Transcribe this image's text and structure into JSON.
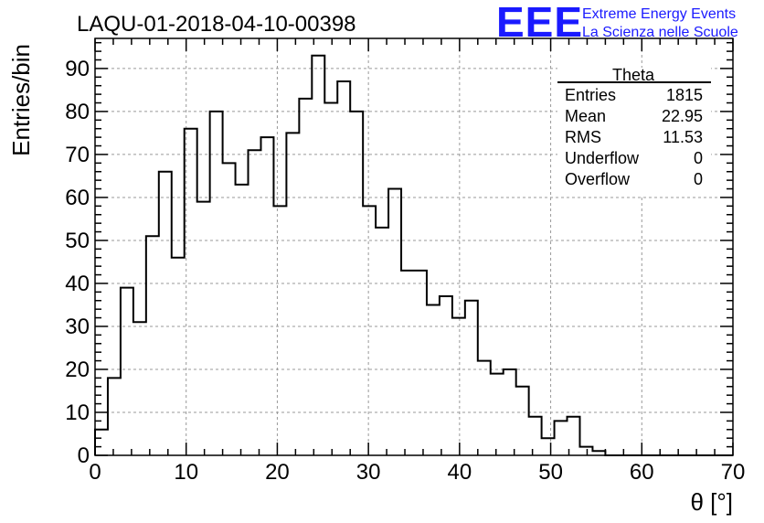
{
  "chart_data": {
    "type": "bar",
    "title": "LAQU-01-2018-04-10-00398",
    "xlabel": "θ [°]",
    "ylabel": "Entries/bin",
    "xlim": [
      0,
      70
    ],
    "ylim": [
      0,
      97
    ],
    "bin_width": 1.4,
    "x_ticks": [
      0,
      10,
      20,
      30,
      40,
      50,
      60,
      70
    ],
    "y_ticks": [
      0,
      10,
      20,
      30,
      40,
      50,
      60,
      70,
      80,
      90
    ],
    "grid": true,
    "values": [
      6,
      18,
      39,
      31,
      51,
      66,
      46,
      76,
      59,
      80,
      68,
      63,
      71,
      74,
      58,
      75,
      83,
      93,
      82,
      87,
      80,
      58,
      53,
      62,
      43,
      43,
      35,
      37,
      32,
      36,
      22,
      19,
      20,
      16,
      9,
      4,
      8,
      9,
      2,
      1,
      0,
      0,
      0,
      0,
      0,
      0,
      0,
      0,
      0,
      0
    ],
    "stats_box": {
      "title": "Theta",
      "rows": [
        {
          "label": "Entries",
          "value": "1815"
        },
        {
          "label": "Mean",
          "value": "22.95"
        },
        {
          "label": "RMS",
          "value": "11.53"
        },
        {
          "label": "Underflow",
          "value": "0"
        },
        {
          "label": "Overflow",
          "value": "0"
        }
      ]
    },
    "logo": {
      "text": "EEE",
      "line1": "Extreme Energy Events",
      "line2": "La Scienza nelle Scuole",
      "color": "#1a1aff"
    },
    "line_color": "#000000",
    "grid_color": "#999999"
  }
}
